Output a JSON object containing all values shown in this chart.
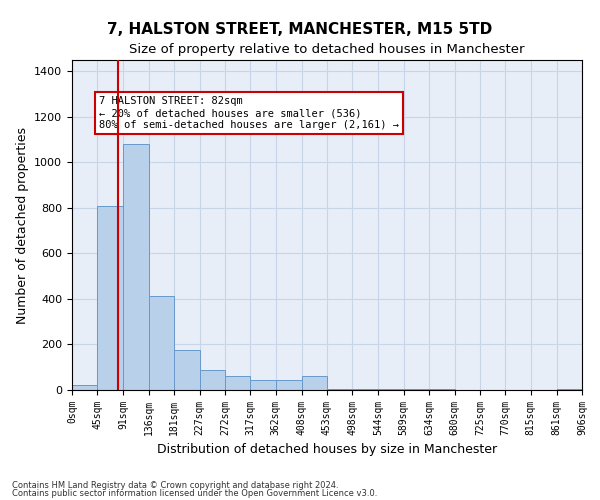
{
  "title": "7, HALSTON STREET, MANCHESTER, M15 5TD",
  "subtitle": "Size of property relative to detached houses in Manchester",
  "xlabel": "Distribution of detached houses by size in Manchester",
  "ylabel": "Number of detached properties",
  "bar_color": "#b8d0ea",
  "bar_edge_color": "#6699cc",
  "grid_color": "#c8d4e8",
  "background_color": "#e8eef8",
  "property_size": 82,
  "vline_color": "#cc0000",
  "annotation_text": "7 HALSTON STREET: 82sqm\n← 20% of detached houses are smaller (536)\n80% of semi-detached houses are larger (2,161) →",
  "annotation_box_color": "#ffffff",
  "annotation_box_edge_color": "#cc0000",
  "footnote1": "Contains HM Land Registry data © Crown copyright and database right 2024.",
  "footnote2": "Contains public sector information licensed under the Open Government Licence v3.0.",
  "bin_edges": [
    0,
    45,
    91,
    136,
    181,
    227,
    272,
    317,
    362,
    408,
    453,
    498,
    544,
    589,
    634,
    680,
    725,
    770,
    815,
    861,
    906
  ],
  "bin_counts": [
    20,
    810,
    1080,
    415,
    175,
    90,
    60,
    45,
    45,
    60,
    5,
    5,
    5,
    5,
    5,
    0,
    0,
    0,
    0,
    5
  ],
  "ylim": [
    0,
    1450
  ],
  "yticks": [
    0,
    200,
    400,
    600,
    800,
    1000,
    1200,
    1400
  ]
}
